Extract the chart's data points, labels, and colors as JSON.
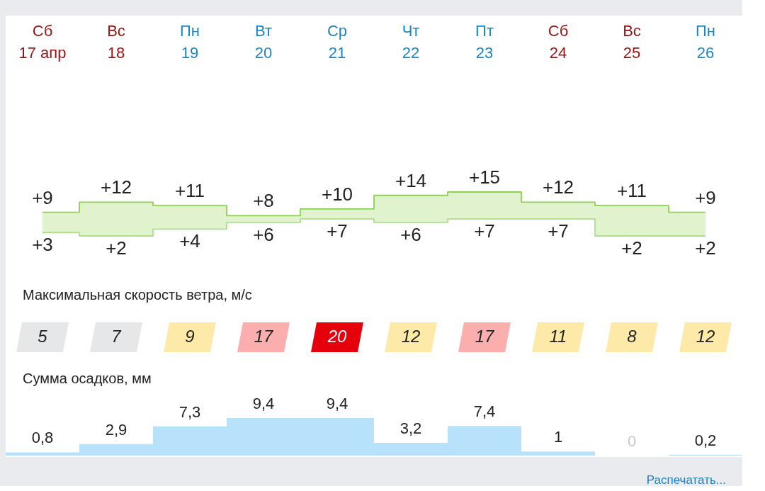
{
  "chart_data": [
    {
      "type": "step",
      "categories": [
        "Сб\n17 апр",
        "Вс\n18",
        "Пн\n19",
        "Вт\n20",
        "Ср\n21",
        "Чт\n22",
        "Пт\n23",
        "Сб\n24",
        "Вс\n25",
        "Пн\n26"
      ],
      "tick_labels": "x",
      "series": [
        {
          "color": "#8fd24e",
          "values": [
            9,
            12,
            11,
            8,
            10,
            14,
            15,
            12,
            11,
            9
          ],
          "value_labels": [
            "+9",
            "+12",
            "+11",
            "+8",
            "+10",
            "+14",
            "+15",
            "+12",
            "+11",
            "+9"
          ],
          "lower": [
            3,
            2,
            4,
            6,
            7,
            6,
            7,
            7,
            2,
            2
          ],
          "upper": [
            9,
            12,
            11,
            8,
            10,
            14,
            15,
            12,
            11,
            9
          ]
        },
        {
          "color": "#ade08a",
          "values": [
            3,
            2,
            4,
            6,
            7,
            6,
            7,
            7,
            2,
            2
          ],
          "value_labels": [
            "+3",
            "+2",
            "+4",
            "+6",
            "+7",
            "+6",
            "+7",
            "+7",
            "+2",
            "+2"
          ]
        }
      ]
    },
    {
      "type": "heatmap",
      "title": "Максимальная скорость ветра, м/с",
      "categories": [
        "Сб\n17 апр",
        "Вс\n18",
        "Пн\n19",
        "Вт\n20",
        "Ср\n21",
        "Чт\n22",
        "Пт\n23",
        "Сб\n24",
        "Вс\n25",
        "Пн\n26"
      ],
      "y_categories": [
        null
      ],
      "cells": [
        [
          5,
          7,
          9,
          17,
          20,
          12,
          17,
          11,
          8,
          12
        ]
      ],
      "data_labels": true,
      "tick_labels": false
    },
    {
      "type": "bar",
      "title": "Сумма осадков, мм",
      "categories": [
        "Сб\n17 апр",
        "Вс\n18",
        "Пн\n19",
        "Вт\n20",
        "Ср\n21",
        "Чт\n22",
        "Пт\n23",
        "Сб\n24",
        "Вс\n25",
        "Пн\n26"
      ],
      "values": [
        0.8,
        2.9,
        7.3,
        9.4,
        9.4,
        3.2,
        7.4,
        1,
        0,
        0.2
      ],
      "value_labels": [
        "0,8",
        "2,9",
        "7,3",
        "9,4",
        "9,4",
        "3,2",
        "7,4",
        "1",
        "0",
        "0,2"
      ],
      "color": "#b8e2fb",
      "tick_labels": false,
      "annotations": [
        "Распечатать..."
      ]
    }
  ]
}
